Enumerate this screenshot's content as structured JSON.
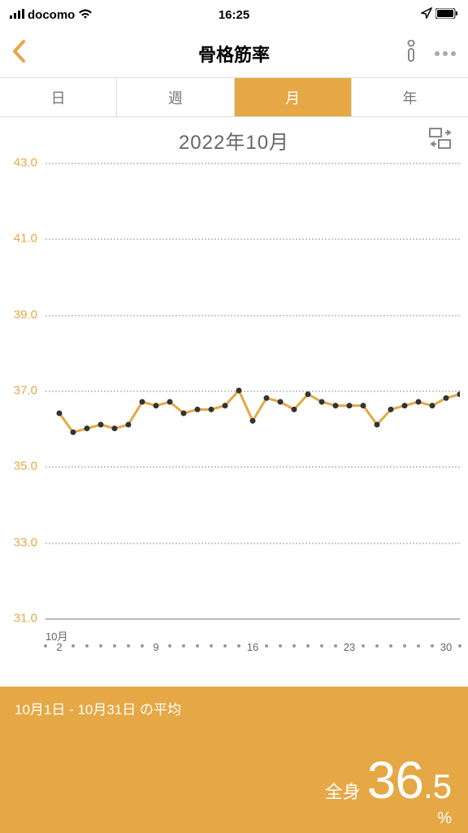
{
  "status": {
    "carrier": "docomo",
    "time": "16:25"
  },
  "nav": {
    "title": "骨格筋率"
  },
  "tabs": {
    "items": [
      "日",
      "週",
      "月",
      "年"
    ],
    "active_index": 2
  },
  "period": {
    "label": "2022年10月"
  },
  "chart": {
    "type": "line",
    "ylim": [
      31,
      43
    ],
    "ytick_step": 2,
    "yticks": [
      31.0,
      33.0,
      35.0,
      37.0,
      39.0,
      41.0,
      43.0
    ],
    "x_month_label": "10月",
    "x_major": [
      2,
      9,
      16,
      23,
      30
    ],
    "x_range": [
      1,
      31
    ],
    "line_color": "#e5a845",
    "line_width": 3,
    "marker_color": "#333333",
    "marker_radius": 3.5,
    "grid_color": "#cccccc",
    "points": [
      {
        "x": 2,
        "y": 36.4
      },
      {
        "x": 3,
        "y": 35.9
      },
      {
        "x": 4,
        "y": 36.0
      },
      {
        "x": 5,
        "y": 36.1
      },
      {
        "x": 6,
        "y": 36.0
      },
      {
        "x": 7,
        "y": 36.1
      },
      {
        "x": 8,
        "y": 36.7
      },
      {
        "x": 9,
        "y": 36.6
      },
      {
        "x": 10,
        "y": 36.7
      },
      {
        "x": 11,
        "y": 36.4
      },
      {
        "x": 12,
        "y": 36.5
      },
      {
        "x": 13,
        "y": 36.5
      },
      {
        "x": 14,
        "y": 36.6
      },
      {
        "x": 15,
        "y": 37.0
      },
      {
        "x": 16,
        "y": 36.2
      },
      {
        "x": 17,
        "y": 36.8
      },
      {
        "x": 18,
        "y": 36.7
      },
      {
        "x": 19,
        "y": 36.5
      },
      {
        "x": 20,
        "y": 36.9
      },
      {
        "x": 21,
        "y": 36.7
      },
      {
        "x": 22,
        "y": 36.6
      },
      {
        "x": 23,
        "y": 36.6
      },
      {
        "x": 24,
        "y": 36.6
      },
      {
        "x": 25,
        "y": 36.1
      },
      {
        "x": 26,
        "y": 36.5
      },
      {
        "x": 27,
        "y": 36.6
      },
      {
        "x": 28,
        "y": 36.7
      },
      {
        "x": 29,
        "y": 36.6
      },
      {
        "x": 30,
        "y": 36.8
      },
      {
        "x": 31,
        "y": 36.9
      }
    ]
  },
  "summary": {
    "title": "10月1日 - 10月31日 の平均",
    "body_label": "全身",
    "value_int": "36",
    "value_dec": ".5",
    "unit": "%"
  },
  "colors": {
    "accent": "#e5a845"
  }
}
